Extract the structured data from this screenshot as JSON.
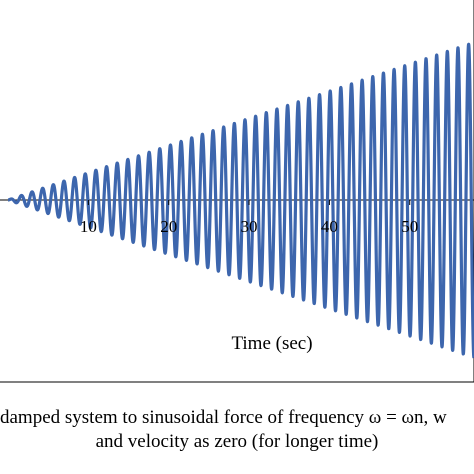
{
  "chart_data": {
    "type": "line",
    "title": "",
    "xlabel": "Time (sec)",
    "ylabel": "",
    "xlim": [
      -1,
      58
    ],
    "ylim": [
      -1,
      1
    ],
    "x_ticks": [
      10,
      20,
      30,
      40,
      50
    ],
    "series": [
      {
        "color": "#3d66ad",
        "model": "y = a · t · sin(ωn · t)",
        "omega_n": 4.74,
        "a": 0.0151,
        "x_start": 0,
        "x_end": 58
      }
    ],
    "grid": false,
    "legend": "none"
  },
  "caption": {
    "line1": "damped system to sinusoidal force of frequency ω = ωn, w",
    "line2": "and velocity as zero (for longer time)"
  },
  "colors": {
    "series": "#3d66ad",
    "axes": "#000000",
    "background": "#ffffff"
  }
}
